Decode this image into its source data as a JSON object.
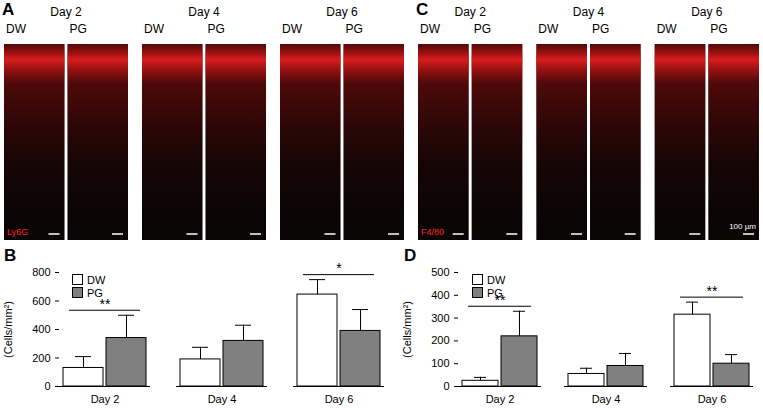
{
  "chart_data": [
    {
      "type": "bar",
      "title": "B",
      "y_label": "(Cells/mm²)",
      "categories": [
        "Day 2",
        "Day 4",
        "Day 6"
      ],
      "series": [
        {
          "name": "DW",
          "color": "#ffffff",
          "values": [
            130,
            190,
            645
          ],
          "errors": [
            80,
            85,
            105
          ]
        },
        {
          "name": "PG",
          "color": "#808080",
          "values": [
            340,
            320,
            390
          ],
          "errors": [
            160,
            110,
            150
          ]
        }
      ],
      "ylim": [
        0,
        800
      ],
      "yticks": [
        0,
        200,
        400,
        600,
        800
      ],
      "grid": false,
      "legend": "top-left",
      "annotations": [
        {
          "category": "Day 2",
          "text": "**"
        },
        {
          "category": "Day 6",
          "text": "*"
        }
      ]
    },
    {
      "type": "bar",
      "title": "D",
      "y_label": "(Cells/mm²)",
      "categories": [
        "Day 2",
        "Day 4",
        "Day 6"
      ],
      "series": [
        {
          "name": "DW",
          "color": "#ffffff",
          "values": [
            25,
            55,
            315
          ],
          "errors": [
            15,
            25,
            55
          ]
        },
        {
          "name": "PG",
          "color": "#808080",
          "values": [
            220,
            90,
            100
          ],
          "errors": [
            110,
            55,
            40
          ]
        }
      ],
      "ylim": [
        0,
        500
      ],
      "yticks": [
        0,
        100,
        200,
        300,
        400,
        500
      ],
      "grid": false,
      "legend": "top-left",
      "annotations": [
        {
          "category": "Day 2",
          "text": "**"
        },
        {
          "category": "Day 6",
          "text": "**"
        }
      ]
    }
  ],
  "image_panels": [
    {
      "panel_label": "A",
      "stain": "Ly6G",
      "groups": [
        {
          "day": "Day 2",
          "lanes": [
            "DW",
            "PG"
          ]
        },
        {
          "day": "Day 4",
          "lanes": [
            "DW",
            "PG"
          ]
        },
        {
          "day": "Day 6",
          "lanes": [
            "DW",
            "PG"
          ]
        }
      ]
    },
    {
      "panel_label": "C",
      "stain": "F4/80",
      "scale_bar": "100 µm",
      "groups": [
        {
          "day": "Day 2",
          "lanes": [
            "DW",
            "PG"
          ]
        },
        {
          "day": "Day 4",
          "lanes": [
            "DW",
            "PG"
          ]
        },
        {
          "day": "Day 6",
          "lanes": [
            "DW",
            "PG"
          ]
        }
      ]
    }
  ]
}
